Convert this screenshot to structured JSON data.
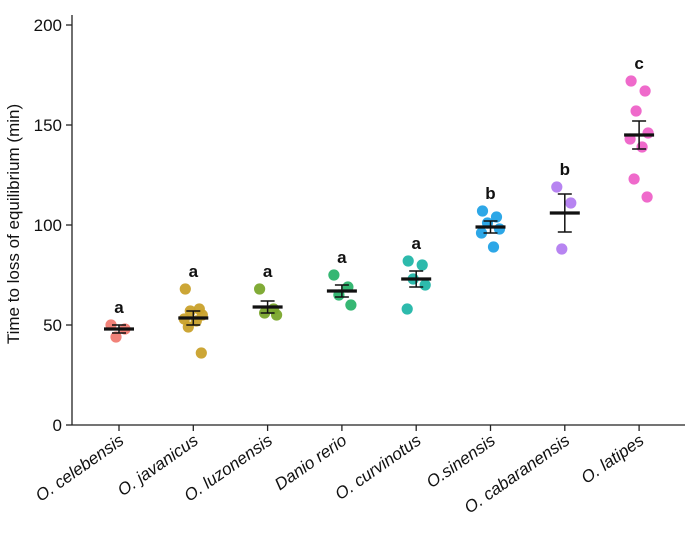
{
  "chart_data": {
    "type": "scatter",
    "title": "",
    "xlabel": "",
    "ylabel": "Time to loss of equilibrium (min)",
    "ylim": [
      0,
      200
    ],
    "yticks": [
      0,
      50,
      100,
      150,
      200
    ],
    "grid": false,
    "categories": [
      "O. celebensis",
      "O. javanicus",
      "O. luzonensis",
      "Danio rerio",
      "O. curvinotus",
      "O.sinensis",
      "O. cabaranensis",
      "O. latipes"
    ],
    "groups": [
      {
        "name": "O. celebensis",
        "color": "#f07b72",
        "points": [
          50,
          48,
          44
        ],
        "mean": 48,
        "error": 2,
        "significance": "a"
      },
      {
        "name": "O. javanicus",
        "color": "#c9a12b",
        "points": [
          68,
          58,
          57,
          55,
          53,
          52,
          49,
          36
        ],
        "mean": 53.5,
        "error": 3.5,
        "significance": "a"
      },
      {
        "name": "O. luzonensis",
        "color": "#7aa62c",
        "points": [
          68,
          58,
          56,
          55
        ],
        "mean": 59,
        "error": 3,
        "significance": "a"
      },
      {
        "name": "Danio rerio",
        "color": "#2bb36c",
        "points": [
          75,
          69,
          65,
          60
        ],
        "mean": 67,
        "error": 3,
        "significance": "a"
      },
      {
        "name": "O. curvinotus",
        "color": "#22b6a8",
        "points": [
          82,
          80,
          73,
          70,
          58
        ],
        "mean": 73,
        "error": 4,
        "significance": "a"
      },
      {
        "name": "O.sinensis",
        "color": "#22a2e6",
        "points": [
          107,
          104,
          101,
          98,
          96,
          89
        ],
        "mean": 99,
        "error": 3,
        "significance": "b"
      },
      {
        "name": "O. cabaranensis",
        "color": "#b37df0",
        "points": [
          119,
          111,
          88
        ],
        "mean": 106,
        "error": 9.5,
        "significance": "b"
      },
      {
        "name": "O. latipes",
        "color": "#ee62c8",
        "points": [
          172,
          167,
          157,
          146,
          143,
          139,
          123,
          114
        ],
        "mean": 145,
        "error": 7,
        "significance": "c"
      }
    ]
  }
}
